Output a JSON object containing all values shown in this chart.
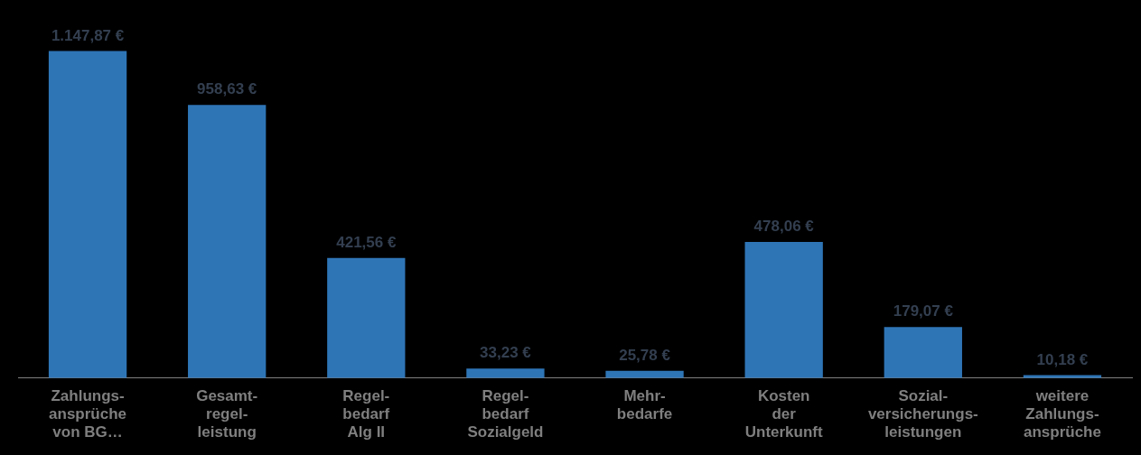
{
  "chart_data": {
    "type": "bar",
    "categories": [
      "Zahlungs-\nansprüche\nvon BG…",
      "Gesamt-\nregel-\nleistung",
      "Regel-\nbedarf\nAlg II",
      "Regel-\nbedarf\nSozialgeld",
      "Mehr-\nbedarfe",
      "Kosten\nder\nUnterkunft",
      "Sozial-\nversicherungs-\nleistungen",
      "weitere\nZahlungs-\nansprüche"
    ],
    "values": [
      1147.87,
      958.63,
      421.56,
      33.23,
      25.78,
      478.06,
      179.07,
      10.18
    ],
    "value_labels": [
      "1.147,87 €",
      "958,63 €",
      "421,56 €",
      "33,23 €",
      "25,78 €",
      "478,06 €",
      "179,07 €",
      "10,18 €"
    ],
    "color": "#2e75b6",
    "grid": false,
    "legend": false
  }
}
